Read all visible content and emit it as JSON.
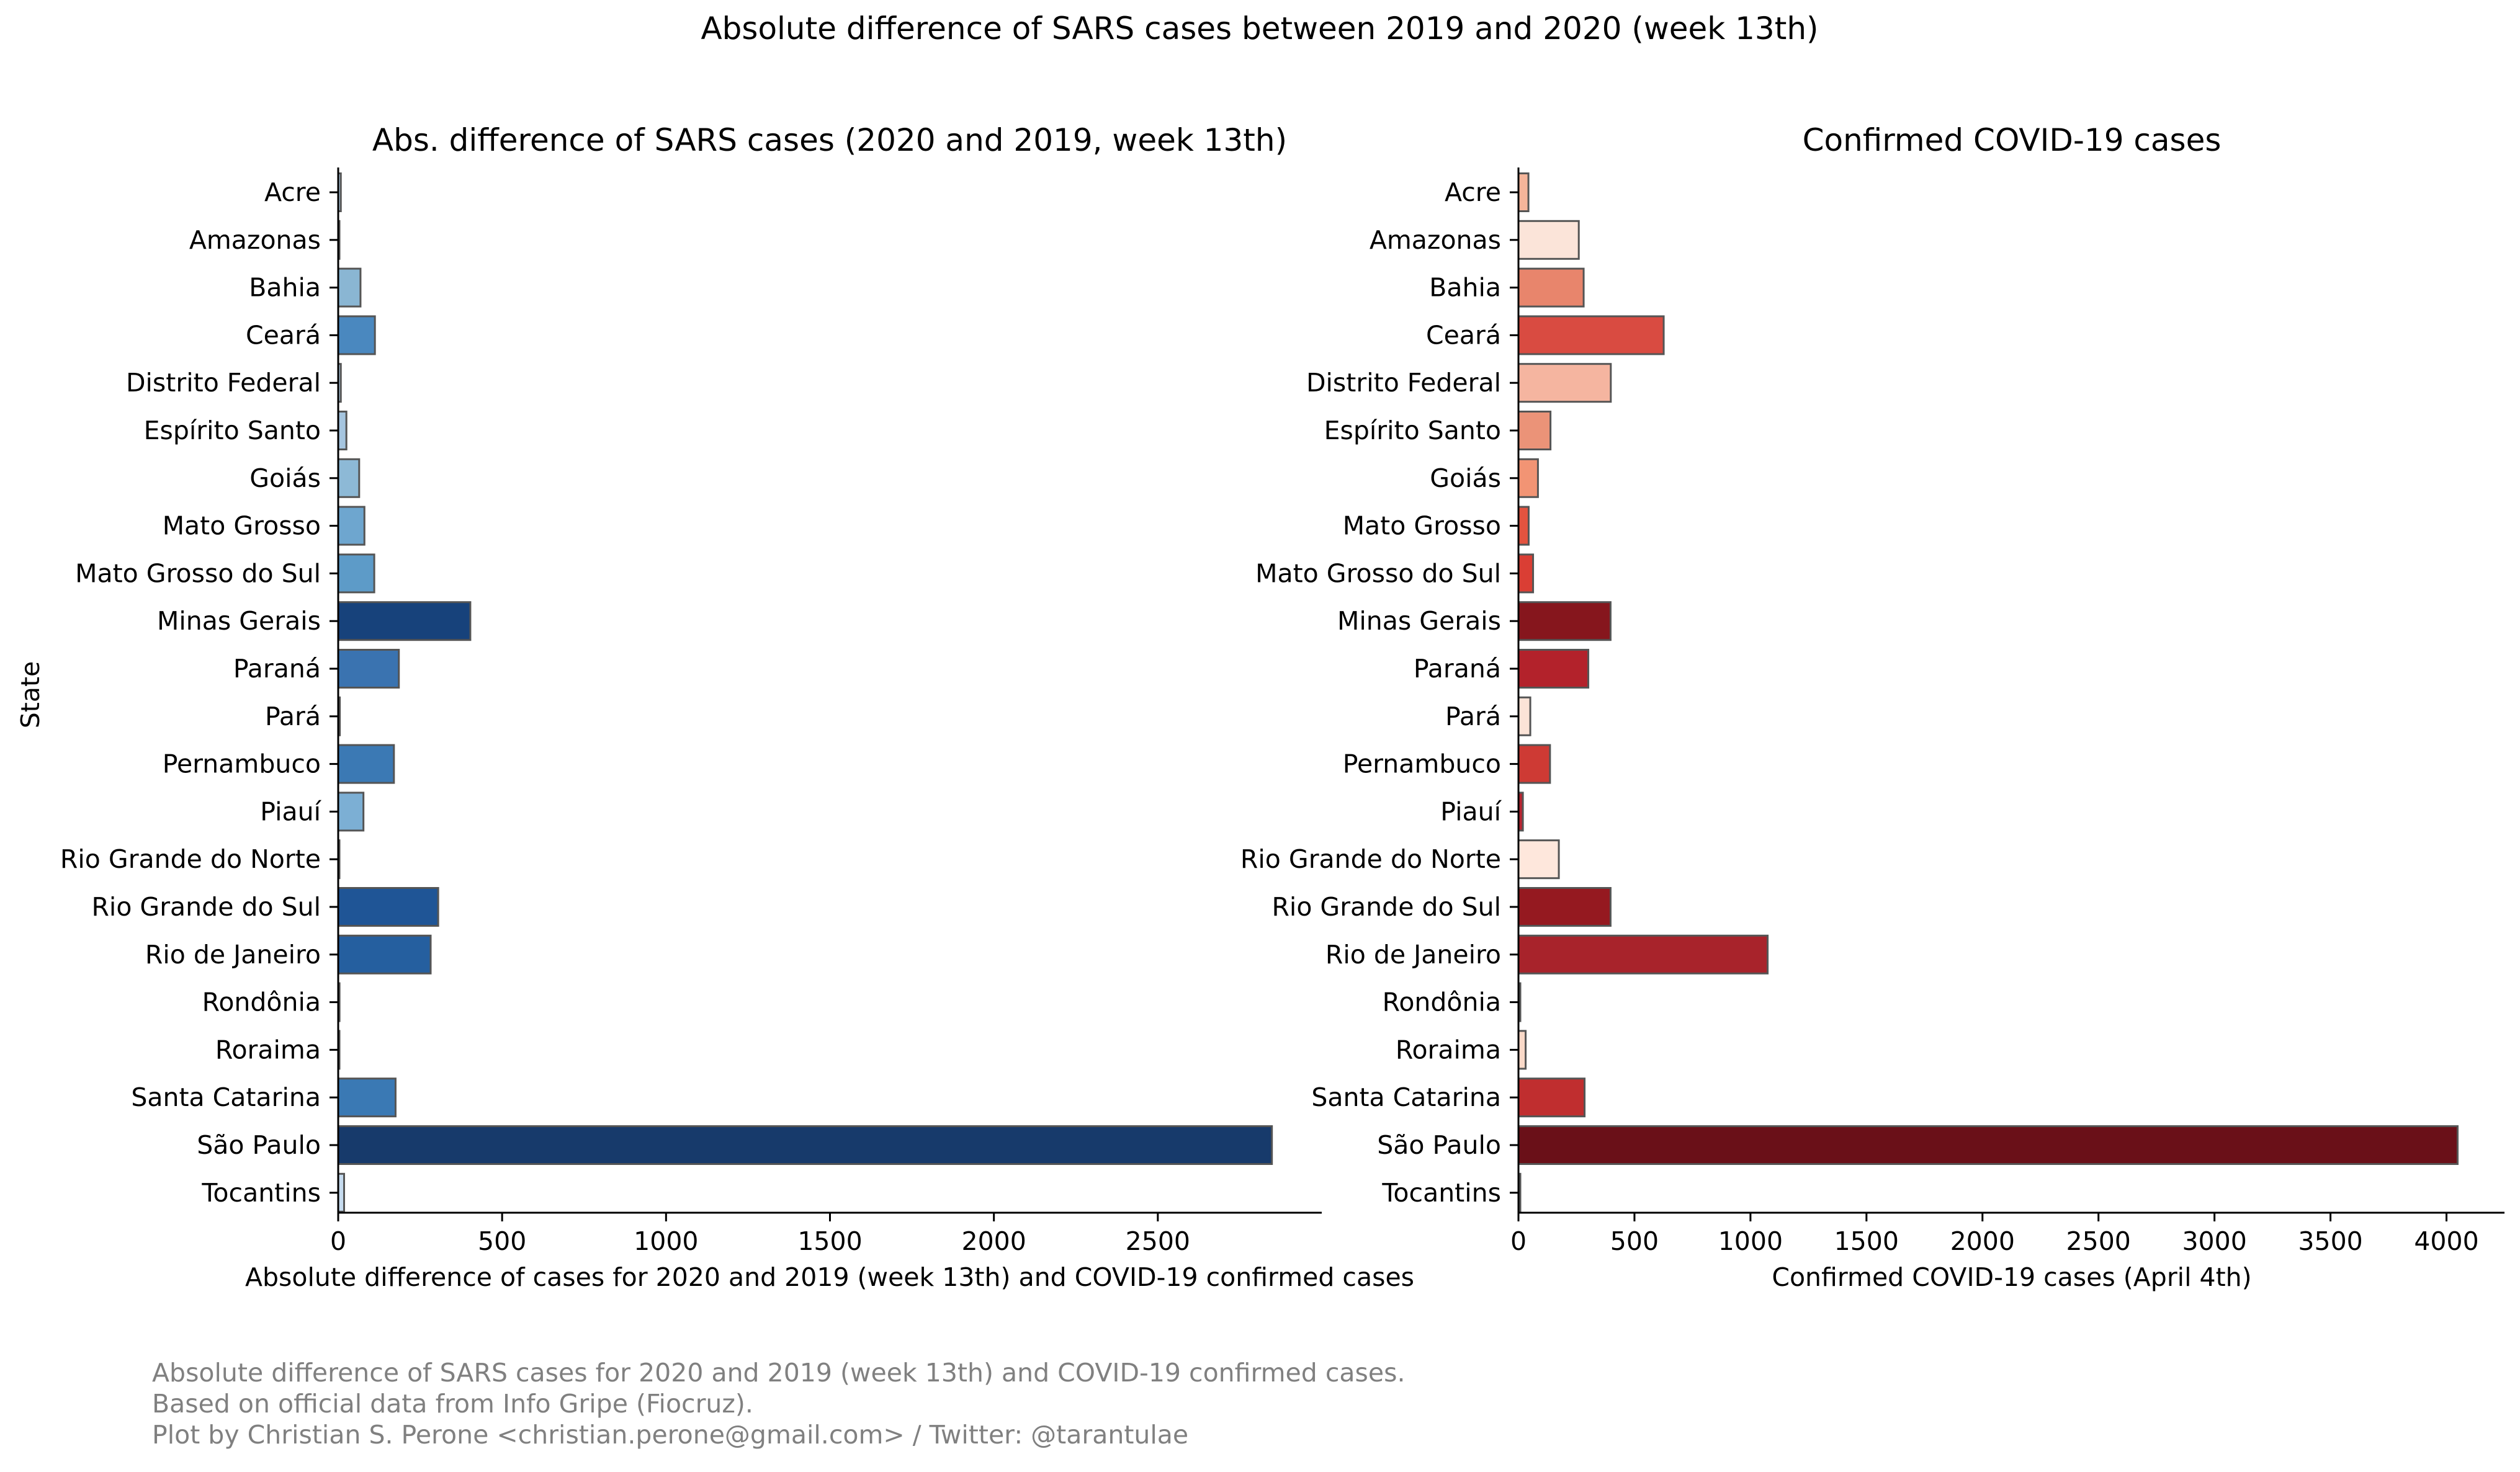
{
  "figure": {
    "suptitle": "Absolute difference of SARS cases between 2019 and 2020 (week 13th)",
    "ylabel": "State"
  },
  "chart_data": [
    {
      "type": "bar",
      "orientation": "horizontal",
      "title": "Abs. difference of SARS cases (2020 and 2019, week 13th)",
      "xlabel": "Absolute difference of cases for 2020 and 2019 (week 13th) and COVID-19 confirmed cases",
      "ylabel": "State",
      "xlim": [
        0,
        3000
      ],
      "xticks": [
        0,
        500,
        1000,
        1500,
        2000,
        2500
      ],
      "colormap": "blues",
      "categories": [
        "Acre",
        "Amazonas",
        "Bahia",
        "Ceará",
        "Distrito Federal",
        "Espírito Santo",
        "Goiás",
        "Mato Grosso",
        "Mato Grosso do Sul",
        "Minas Gerais",
        "Paraná",
        "Pará",
        "Pernambuco",
        "Piauí",
        "Rio Grande do Norte",
        "Rio Grande do Sul",
        "Rio de Janeiro",
        "Rondônia",
        "Roraima",
        "Santa Catarina",
        "São Paulo",
        "Tocantins"
      ],
      "values": [
        8,
        0,
        68,
        112,
        8,
        25,
        64,
        80,
        110,
        403,
        185,
        5,
        170,
        77,
        2,
        305,
        282,
        4,
        3,
        175,
        2848,
        18
      ],
      "colors": [
        "#aecadf",
        "#c6dbef",
        "#8ab6d3",
        "#4a88bf",
        "#aecadf",
        "#a5c5df",
        "#8db9d6",
        "#6ea6cf",
        "#5d9bc8",
        "#17427b",
        "#3a73b0",
        "#b5d2e6",
        "#3b79b4",
        "#7cafd4",
        "#c6dbef",
        "#1f5596",
        "#255f9f",
        "#b5d2e6",
        "#c6dbef",
        "#3a79b4",
        "#173a6b",
        "#c6dbef"
      ],
      "grid": false
    },
    {
      "type": "bar",
      "orientation": "horizontal",
      "title": "Confirmed COVID-19 cases",
      "xlabel": "Confirmed COVID-19 cases (April 4th)",
      "xlim": [
        0,
        4250
      ],
      "xticks": [
        0,
        500,
        1000,
        1500,
        2000,
        2500,
        3000,
        3500,
        4000
      ],
      "colormap": "reds",
      "categories": [
        "Acre",
        "Amazonas",
        "Bahia",
        "Ceará",
        "Distrito Federal",
        "Espírito Santo",
        "Goiás",
        "Mato Grosso",
        "Mato Grosso do Sul",
        "Minas Gerais",
        "Paraná",
        "Pará",
        "Pernambuco",
        "Piauí",
        "Rio Grande do Norte",
        "Rio Grande do Sul",
        "Rio de Janeiro",
        "Rondônia",
        "Roraima",
        "Santa Catarina",
        "São Paulo",
        "Tocantins"
      ],
      "values": [
        43,
        260,
        281,
        626,
        398,
        138,
        84,
        44,
        63,
        397,
        301,
        51,
        136,
        19,
        174,
        397,
        1074,
        8,
        31,
        285,
        4048,
        8
      ],
      "colors": [
        "#f5b59a",
        "#fbe4d9",
        "#e8856c",
        "#d94b41",
        "#f5b5a0",
        "#eb9378",
        "#f29474",
        "#e3533f",
        "#da3e34",
        "#86161d",
        "#b3222b",
        "#fbe3d7",
        "#ce3a34",
        "#b82430",
        "#fee7dc",
        "#951920",
        "#a8232b",
        "#6e1017",
        "#fad9c8",
        "#c02e2f",
        "#6a1018",
        "#b0242e"
      ],
      "grid": false
    }
  ],
  "footer": {
    "line1": "Absolute difference of SARS cases for 2020 and 2019 (week 13th) and COVID-19 confirmed cases.",
    "line2": "Based on official data from Info Gripe (Fiocruz).",
    "line3": "Plot by Christian S. Perone <christian.perone@gmail.com> / Twitter: @tarantulae"
  }
}
